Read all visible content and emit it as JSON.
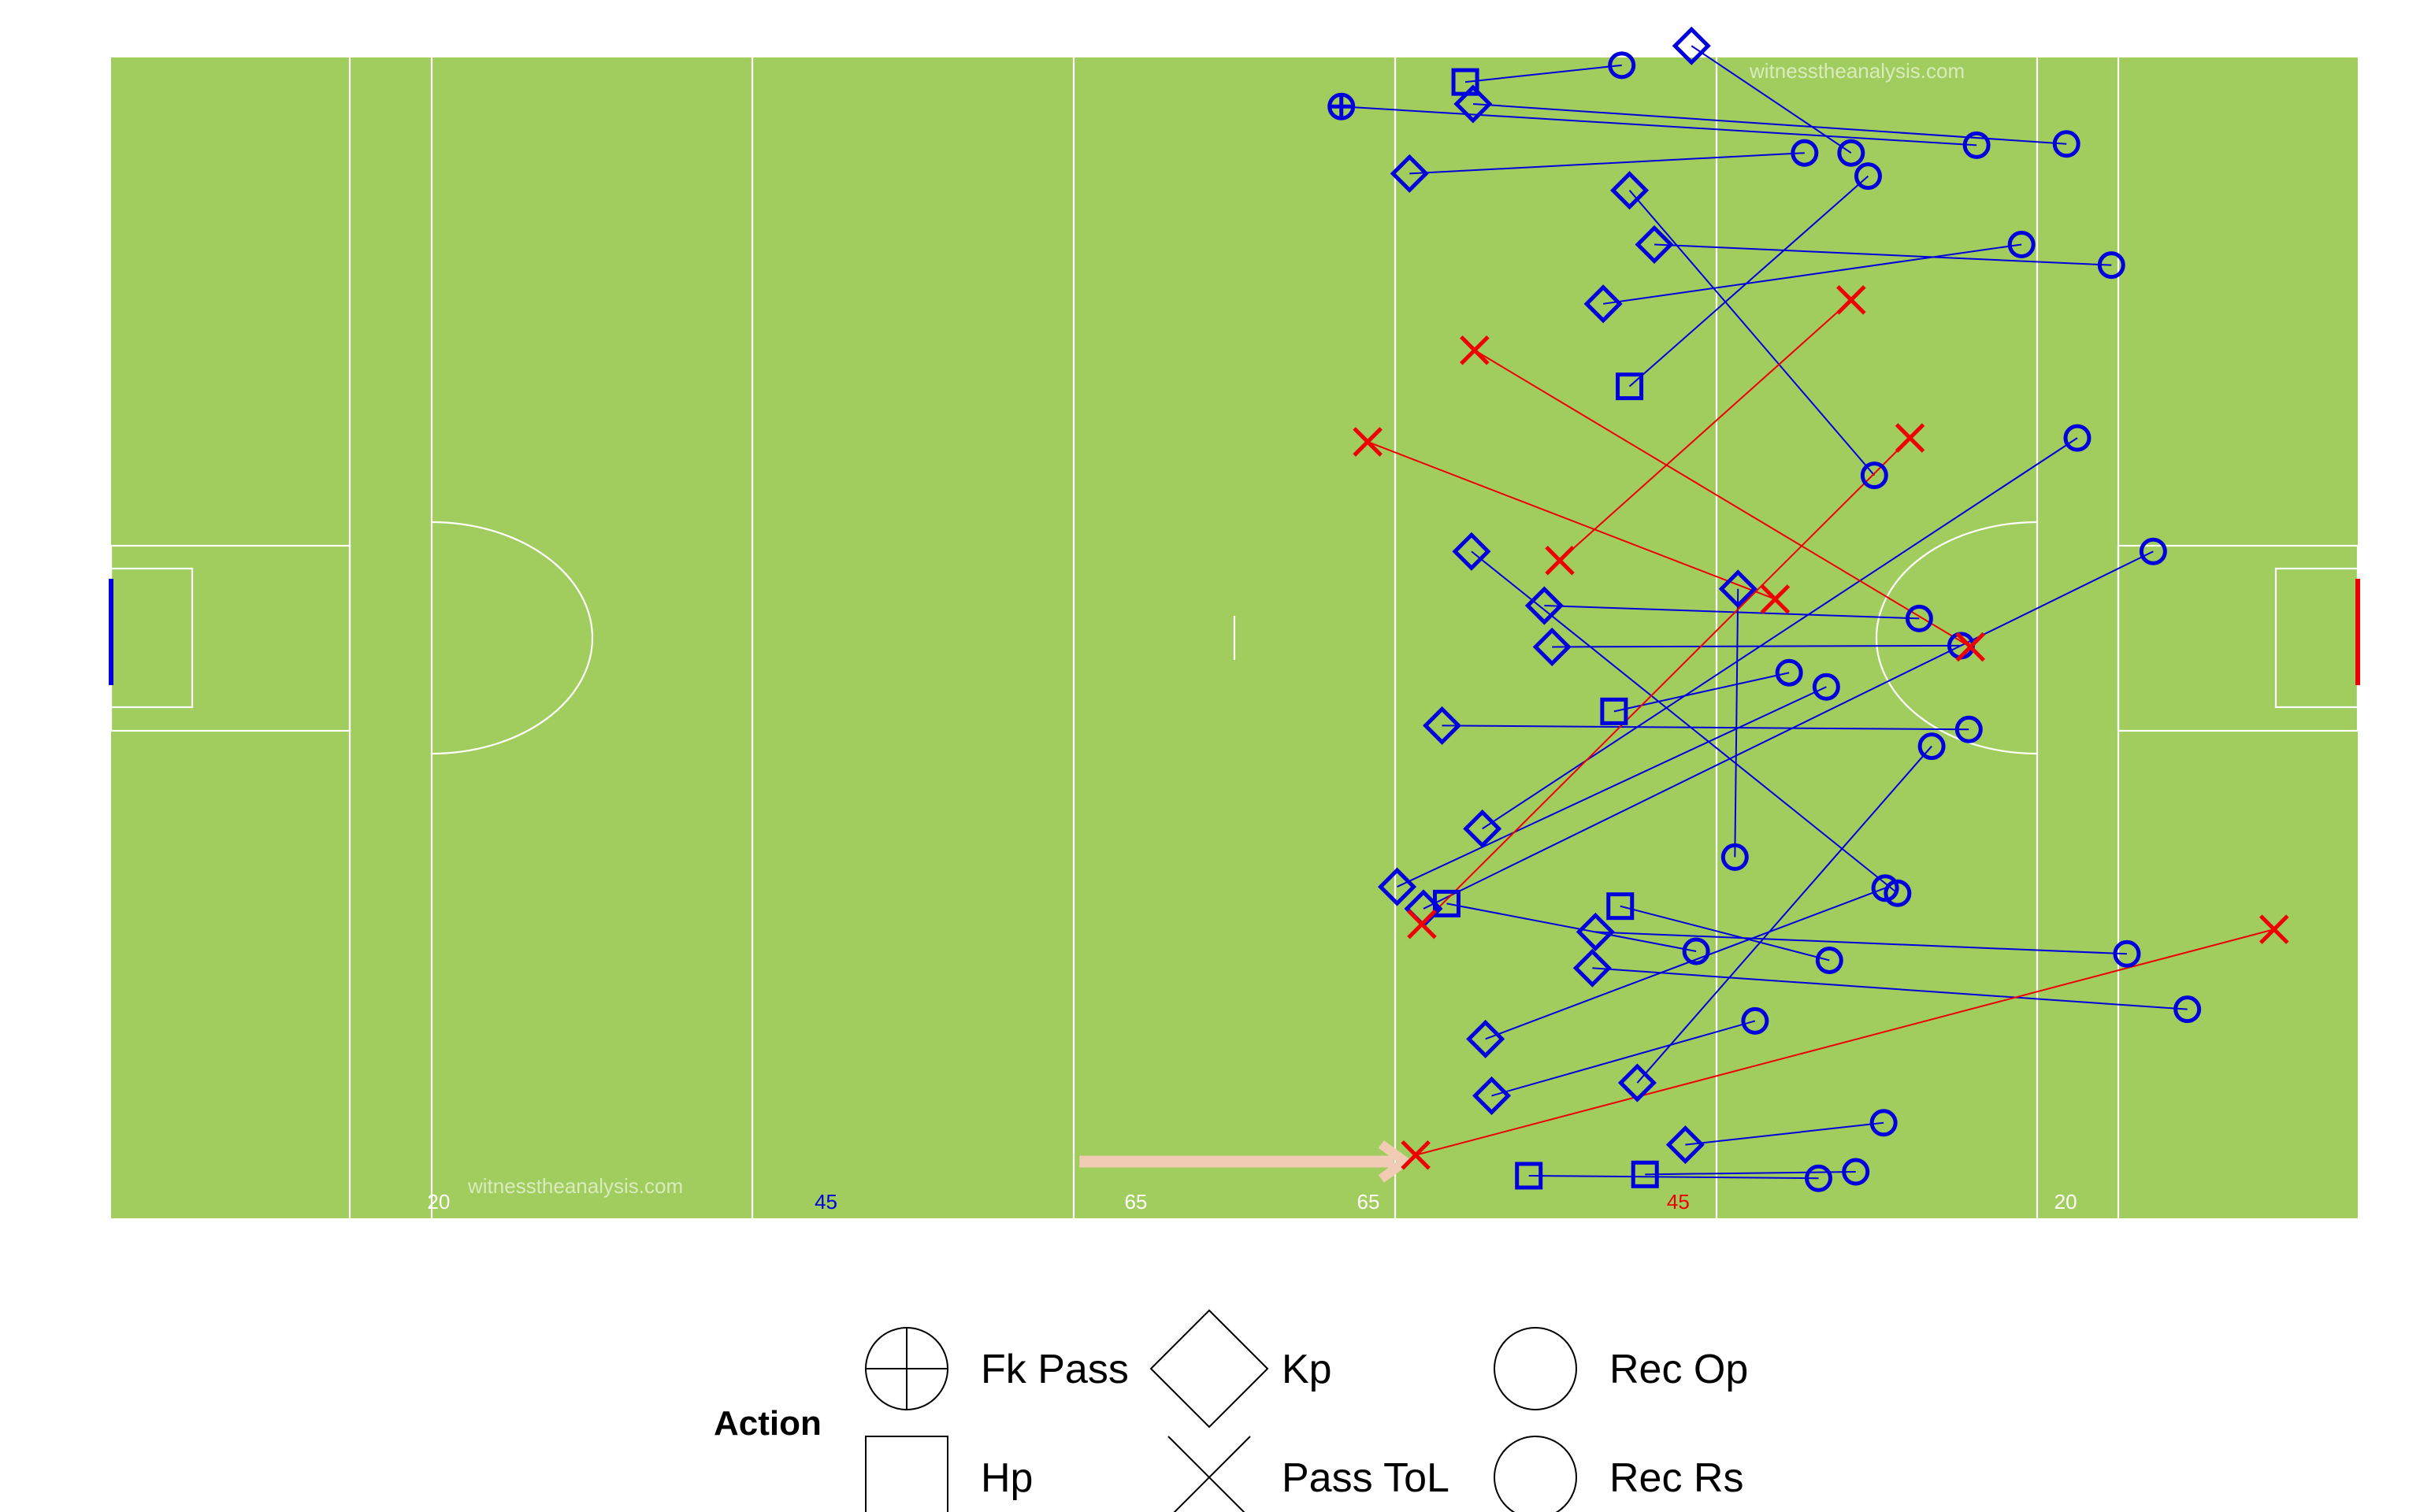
{
  "colors": {
    "pitch": "#a1cd5e",
    "line": "#ffffff",
    "success": "#0000dd",
    "turnover": "#ee0000",
    "arrow": "#f1cbb4",
    "left_goal": "#0000dd",
    "right_goal": "#ee0000"
  },
  "pitch": {
    "watermark_top": "witnesstheanalysis.com",
    "watermark_bottom": "witnesstheanalysis.com",
    "marks": [
      {
        "label": "20",
        "x": 20,
        "color": "#ffffff"
      },
      {
        "label": "45",
        "x": 45,
        "color": "#0000dd"
      },
      {
        "label": "65",
        "x": 65,
        "color": "#ffffff"
      },
      {
        "label": "65",
        "x": 80,
        "color": "#ffffff"
      },
      {
        "label": "45",
        "x": 100,
        "color": "#ee0000"
      },
      {
        "label": "20",
        "x": 125,
        "color": "#ffffff"
      }
    ]
  },
  "chart_data": {
    "type": "scatter",
    "title": "",
    "x_label": "",
    "y_label": "",
    "x_range": [
      0,
      145
    ],
    "y_range": [
      0,
      90
    ],
    "attack_direction": "right",
    "series": [
      {
        "name": "Fk Pass",
        "shape": "crossed-circle",
        "points": [
          {
            "x": 79.4,
            "y": 86.2,
            "end_x": 120.4,
            "end_y": 83.2,
            "end_shape": "circle",
            "outcome": "success"
          }
        ]
      },
      {
        "name": "Hp",
        "shape": "square",
        "points": [
          {
            "x": 87.4,
            "y": 88.1,
            "end_x": 97.5,
            "end_y": 89.4,
            "end_shape": "circle",
            "outcome": "success"
          },
          {
            "x": 98.0,
            "y": 64.5,
            "end_x": 113.4,
            "end_y": 80.8,
            "end_shape": "circle",
            "outcome": "success"
          },
          {
            "x": 97.0,
            "y": 39.3,
            "end_x": 108.3,
            "end_y": 42.3,
            "end_shape": "circle",
            "outcome": "success"
          },
          {
            "x": 86.2,
            "y": 24.4,
            "end_x": 102.3,
            "end_y": 20.7,
            "end_shape": "circle",
            "outcome": "success"
          },
          {
            "x": 97.4,
            "y": 24.2,
            "end_x": 110.9,
            "end_y": 20.0,
            "end_shape": "circle",
            "outcome": "success"
          },
          {
            "x": 91.5,
            "y": 3.3,
            "end_x": 110.2,
            "end_y": 3.1,
            "end_shape": "circle",
            "outcome": "success"
          },
          {
            "x": 99.0,
            "y": 3.4,
            "end_x": 112.6,
            "end_y": 3.6,
            "end_shape": "circle",
            "outcome": "success"
          }
        ]
      },
      {
        "name": "Kp",
        "shape": "diamond",
        "points": [
          {
            "x": 102.0,
            "y": 90.9,
            "end_x": 112.3,
            "end_y": 82.6,
            "end_shape": "circle",
            "outcome": "success"
          },
          {
            "x": 87.9,
            "y": 86.4,
            "end_x": 126.2,
            "end_y": 83.3,
            "end_shape": "circle",
            "outcome": "success"
          },
          {
            "x": 83.8,
            "y": 81.0,
            "end_x": 109.3,
            "end_y": 82.6,
            "end_shape": "circle",
            "outcome": "success"
          },
          {
            "x": 98.0,
            "y": 79.7,
            "end_x": 113.8,
            "end_y": 57.6,
            "end_shape": "circle",
            "outcome": "success"
          },
          {
            "x": 99.6,
            "y": 75.5,
            "end_x": 129.1,
            "end_y": 73.9,
            "end_shape": "circle",
            "outcome": "success"
          },
          {
            "x": 96.3,
            "y": 70.9,
            "end_x": 123.3,
            "end_y": 75.5,
            "end_shape": "circle",
            "outcome": "success"
          },
          {
            "x": 93.0,
            "y": 44.3,
            "end_x": 119.4,
            "end_y": 44.4,
            "end_shape": "circle",
            "outcome": "success"
          },
          {
            "x": 85.9,
            "y": 38.2,
            "end_x": 119.9,
            "end_y": 37.9,
            "end_shape": "circle",
            "outcome": "success"
          },
          {
            "x": 92.5,
            "y": 47.5,
            "end_x": 116.7,
            "end_y": 46.5,
            "end_shape": "circle",
            "outcome": "success"
          },
          {
            "x": 95.8,
            "y": 22.2,
            "end_x": 130.1,
            "end_y": 20.5,
            "end_shape": "circle",
            "outcome": "success"
          },
          {
            "x": 88.5,
            "y": 30.2,
            "end_x": 126.9,
            "end_y": 60.5,
            "end_shape": "circle",
            "outcome": "success"
          },
          {
            "x": 84.7,
            "y": 24.0,
            "end_x": 131.8,
            "end_y": 51.7,
            "end_shape": "circle",
            "outcome": "success"
          },
          {
            "x": 88.7,
            "y": 13.9,
            "end_x": 114.5,
            "end_y": 25.6,
            "end_shape": "circle",
            "outcome": "success"
          },
          {
            "x": 95.6,
            "y": 19.4,
            "end_x": 134.0,
            "end_y": 16.2,
            "end_shape": "circle",
            "outcome": "success"
          },
          {
            "x": 89.1,
            "y": 9.5,
            "end_x": 106.1,
            "end_y": 15.3,
            "end_shape": "circle",
            "outcome": "success"
          },
          {
            "x": 98.5,
            "y": 10.5,
            "end_x": 117.5,
            "end_y": 36.6,
            "end_shape": "circle",
            "outcome": "success"
          },
          {
            "x": 101.6,
            "y": 5.7,
            "end_x": 114.4,
            "end_y": 7.4,
            "end_shape": "circle",
            "outcome": "success"
          },
          {
            "x": 105.0,
            "y": 48.8,
            "end_x": 104.8,
            "end_y": 28.0,
            "end_shape": "circle",
            "outcome": "success"
          },
          {
            "x": 83.0,
            "y": 25.7,
            "end_x": 110.7,
            "end_y": 41.2,
            "end_shape": "circle",
            "outcome": "success"
          },
          {
            "x": 87.8,
            "y": 51.7,
            "end_x": 115.3,
            "end_y": 25.2,
            "end_shape": "circle",
            "outcome": "success"
          }
        ]
      },
      {
        "name": "Pass ToL",
        "shape": "x",
        "points": [
          {
            "x": 88.0,
            "y": 67.3,
            "end_x": 120.0,
            "end_y": 44.3,
            "end_shape": "x",
            "outcome": "turnover"
          },
          {
            "x": 81.1,
            "y": 60.2,
            "end_x": 107.4,
            "end_y": 48.0,
            "end_shape": "x",
            "outcome": "turnover"
          },
          {
            "x": 93.5,
            "y": 51.0,
            "end_x": 112.3,
            "end_y": 71.2,
            "end_shape": "x",
            "outcome": "turnover"
          },
          {
            "x": 84.6,
            "y": 22.8,
            "end_x": 116.1,
            "end_y": 60.5,
            "end_shape": "x",
            "outcome": "turnover"
          },
          {
            "x": 84.2,
            "y": 4.9,
            "end_x": 139.6,
            "end_y": 22.4,
            "end_shape": "x",
            "outcome": "turnover"
          }
        ]
      }
    ],
    "arrow": {
      "from_x": 62.5,
      "to_x": 83.5,
      "y": 4.4
    },
    "legend": {
      "title": "Action",
      "position": "bottom",
      "entries": [
        {
          "label": "Fk Pass",
          "icon": "crossed-circle"
        },
        {
          "label": "Hp",
          "icon": "square"
        },
        {
          "label": "Kp",
          "icon": "diamond"
        },
        {
          "label": "Pass ToL",
          "icon": "x"
        },
        {
          "label": "Rec Op",
          "icon": "circle"
        },
        {
          "label": "Rec Rs",
          "icon": "circle"
        }
      ]
    }
  }
}
